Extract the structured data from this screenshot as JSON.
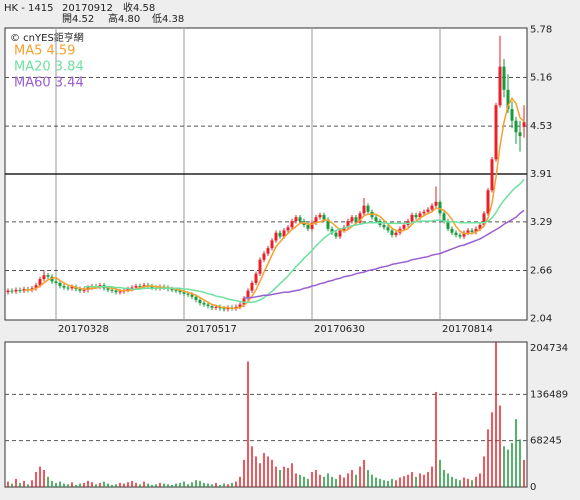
{
  "header": {
    "symbol": "HK - 1415",
    "date": "20170912",
    "close": "收4.58",
    "open": "開4.52",
    "high": "高4.80",
    "low": "低4.38"
  },
  "chart_data": [
    {
      "type": "candlestick",
      "watermark": "© cnYES鉅亨網",
      "categories": [
        null,
        null,
        null,
        null,
        null,
        null,
        null,
        null,
        null,
        null,
        null,
        null,
        "20170328",
        null,
        null,
        null,
        null,
        null,
        null,
        null,
        null,
        null,
        null,
        null,
        null,
        null,
        null,
        null,
        null,
        null,
        null,
        null,
        null,
        null,
        null,
        null,
        null,
        null,
        null,
        null,
        null,
        null,
        null,
        null,
        "20170517",
        null,
        null,
        null,
        null,
        null,
        null,
        null,
        null,
        null,
        null,
        null,
        null,
        null,
        null,
        null,
        null,
        null,
        null,
        null,
        null,
        null,
        null,
        null,
        null,
        null,
        null,
        null,
        null,
        null,
        null,
        null,
        "20170630",
        null,
        null,
        null,
        null,
        null,
        null,
        null,
        null,
        null,
        null,
        null,
        null,
        null,
        null,
        null,
        null,
        null,
        null,
        null,
        null,
        null,
        null,
        null,
        null,
        null,
        null,
        null,
        null,
        null,
        null,
        null,
        "20170814",
        null,
        null,
        null,
        null,
        null,
        null,
        null,
        null,
        null,
        null,
        null,
        null,
        null,
        null,
        null,
        null,
        null,
        null,
        null,
        null,
        null
      ],
      "open": [
        2.38,
        2.4,
        2.39,
        2.41,
        2.4,
        2.42,
        2.41,
        2.43,
        2.47,
        2.55,
        2.6,
        2.58,
        2.52,
        2.5,
        2.46,
        2.44,
        2.43,
        2.45,
        2.42,
        2.4,
        2.41,
        2.44,
        2.46,
        2.45,
        2.47,
        2.43,
        2.41,
        2.4,
        2.38,
        2.39,
        2.41,
        2.42,
        2.44,
        2.46,
        2.45,
        2.47,
        2.46,
        2.44,
        2.43,
        2.45,
        2.44,
        2.42,
        2.41,
        2.4,
        2.38,
        2.36,
        2.35,
        2.32,
        2.28,
        2.24,
        2.22,
        2.2,
        2.18,
        2.19,
        2.17,
        2.16,
        2.18,
        2.17,
        2.19,
        2.22,
        2.3,
        2.4,
        2.5,
        2.62,
        2.8,
        2.88,
        2.95,
        3.05,
        3.15,
        3.1,
        3.18,
        3.22,
        3.3,
        3.35,
        3.3,
        3.25,
        3.2,
        3.28,
        3.35,
        3.38,
        3.32,
        3.2,
        3.15,
        3.1,
        3.18,
        3.22,
        3.3,
        3.35,
        3.28,
        3.4,
        3.5,
        3.42,
        3.35,
        3.3,
        3.25,
        3.22,
        3.18,
        3.12,
        3.15,
        3.2,
        3.25,
        3.3,
        3.38,
        3.35,
        3.4,
        3.42,
        3.45,
        3.5,
        3.55,
        3.4,
        3.3,
        3.2,
        3.15,
        3.12,
        3.1,
        3.15,
        3.18,
        3.16,
        3.2,
        3.25,
        3.4,
        3.7,
        4.1,
        4.8,
        5.3,
        5.0,
        4.75,
        4.6,
        4.45,
        4.52
      ],
      "high": [
        2.43,
        2.43,
        2.44,
        2.44,
        2.45,
        2.45,
        2.46,
        2.5,
        2.58,
        2.66,
        2.63,
        2.61,
        2.55,
        2.53,
        2.49,
        2.47,
        2.48,
        2.48,
        2.45,
        2.44,
        2.47,
        2.49,
        2.49,
        2.5,
        2.5,
        2.46,
        2.44,
        2.43,
        2.42,
        2.44,
        2.45,
        2.47,
        2.49,
        2.49,
        2.5,
        2.5,
        2.49,
        2.47,
        2.48,
        2.48,
        2.47,
        2.45,
        2.44,
        2.43,
        2.41,
        2.39,
        2.38,
        2.35,
        2.31,
        2.27,
        2.25,
        2.23,
        2.22,
        2.22,
        2.2,
        2.21,
        2.21,
        2.22,
        2.25,
        2.33,
        2.43,
        2.53,
        2.65,
        2.83,
        2.91,
        2.98,
        3.08,
        3.18,
        3.18,
        3.21,
        3.25,
        3.33,
        3.38,
        3.38,
        3.33,
        3.28,
        3.31,
        3.38,
        3.41,
        3.41,
        3.35,
        3.23,
        3.18,
        3.21,
        3.25,
        3.33,
        3.38,
        3.38,
        3.43,
        3.6,
        3.53,
        3.45,
        3.38,
        3.33,
        3.28,
        3.25,
        3.21,
        3.18,
        3.23,
        3.28,
        3.33,
        3.41,
        3.41,
        3.43,
        3.45,
        3.48,
        3.53,
        3.75,
        3.58,
        3.43,
        3.33,
        3.23,
        3.18,
        3.15,
        3.18,
        3.21,
        3.21,
        3.23,
        3.28,
        3.43,
        3.73,
        4.13,
        4.83,
        5.7,
        5.4,
        5.2,
        4.85,
        4.65,
        4.6,
        4.8
      ],
      "low": [
        2.35,
        2.36,
        2.36,
        2.37,
        2.37,
        2.38,
        2.38,
        2.4,
        2.44,
        2.52,
        2.55,
        2.49,
        2.47,
        2.43,
        2.41,
        2.4,
        2.4,
        2.39,
        2.37,
        2.37,
        2.38,
        2.41,
        2.42,
        2.42,
        2.4,
        2.38,
        2.37,
        2.35,
        2.35,
        2.36,
        2.38,
        2.39,
        2.41,
        2.42,
        2.42,
        2.43,
        2.41,
        2.4,
        2.4,
        2.41,
        2.39,
        2.38,
        2.37,
        2.35,
        2.33,
        2.32,
        2.29,
        2.25,
        2.21,
        2.19,
        2.17,
        2.15,
        2.15,
        2.14,
        2.13,
        2.13,
        2.14,
        2.14,
        2.16,
        2.19,
        2.27,
        2.37,
        2.47,
        2.59,
        2.77,
        2.85,
        2.92,
        3.02,
        3.07,
        3.07,
        3.15,
        3.19,
        3.27,
        3.27,
        3.22,
        3.17,
        3.17,
        3.25,
        3.32,
        3.29,
        3.17,
        3.12,
        3.07,
        3.07,
        3.15,
        3.19,
        3.27,
        3.25,
        3.25,
        3.37,
        3.39,
        3.32,
        3.27,
        3.22,
        3.19,
        3.15,
        3.09,
        3.09,
        3.12,
        3.17,
        3.22,
        3.27,
        3.32,
        3.32,
        3.37,
        3.39,
        3.42,
        3.47,
        3.37,
        3.27,
        3.17,
        3.12,
        3.09,
        3.07,
        3.07,
        3.12,
        3.13,
        3.13,
        3.17,
        3.22,
        3.37,
        3.67,
        4.07,
        4.77,
        4.9,
        4.7,
        4.5,
        4.3,
        4.2,
        4.38
      ],
      "close": [
        2.4,
        2.39,
        2.41,
        2.4,
        2.42,
        2.41,
        2.43,
        2.47,
        2.55,
        2.6,
        2.58,
        2.52,
        2.5,
        2.46,
        2.44,
        2.43,
        2.45,
        2.42,
        2.4,
        2.41,
        2.44,
        2.46,
        2.45,
        2.47,
        2.43,
        2.41,
        2.4,
        2.38,
        2.39,
        2.41,
        2.42,
        2.44,
        2.46,
        2.45,
        2.47,
        2.46,
        2.44,
        2.43,
        2.45,
        2.44,
        2.42,
        2.41,
        2.4,
        2.38,
        2.36,
        2.35,
        2.32,
        2.28,
        2.24,
        2.22,
        2.2,
        2.18,
        2.19,
        2.17,
        2.16,
        2.18,
        2.17,
        2.19,
        2.22,
        2.3,
        2.4,
        2.5,
        2.62,
        2.8,
        2.88,
        2.95,
        3.05,
        3.15,
        3.1,
        3.18,
        3.22,
        3.3,
        3.35,
        3.3,
        3.25,
        3.2,
        3.28,
        3.35,
        3.38,
        3.32,
        3.2,
        3.15,
        3.1,
        3.18,
        3.22,
        3.3,
        3.35,
        3.28,
        3.4,
        3.5,
        3.42,
        3.35,
        3.3,
        3.25,
        3.22,
        3.18,
        3.12,
        3.15,
        3.2,
        3.25,
        3.3,
        3.38,
        3.35,
        3.4,
        3.42,
        3.45,
        3.5,
        3.55,
        3.4,
        3.3,
        3.2,
        3.15,
        3.12,
        3.1,
        3.15,
        3.18,
        3.16,
        3.2,
        3.25,
        3.4,
        3.7,
        4.1,
        4.8,
        5.3,
        5.0,
        4.75,
        4.6,
        4.45,
        4.4,
        4.58
      ],
      "up_color": "#e8202a",
      "down_color": "#1a9a3a",
      "series": [
        {
          "name": "MA5 4.59",
          "color": "#f5a030",
          "values": [
            null,
            null,
            null,
            null,
            2.4,
            2.41,
            2.41,
            2.43,
            2.46,
            2.5,
            2.54,
            2.56,
            2.57,
            2.53,
            2.5,
            2.47,
            2.46,
            2.44,
            2.43,
            2.42,
            2.42,
            2.43,
            2.43,
            2.45,
            2.45,
            2.44,
            2.43,
            2.42,
            2.4,
            2.4,
            2.4,
            2.41,
            2.42,
            2.44,
            2.45,
            2.46,
            2.46,
            2.45,
            2.45,
            2.44,
            2.44,
            2.43,
            2.42,
            2.41,
            2.39,
            2.38,
            2.36,
            2.34,
            2.31,
            2.28,
            2.25,
            2.22,
            2.21,
            2.19,
            2.18,
            2.18,
            2.17,
            2.17,
            2.18,
            2.21,
            2.26,
            2.33,
            2.41,
            2.52,
            2.64,
            2.75,
            2.86,
            2.97,
            3.03,
            3.09,
            3.14,
            3.19,
            3.23,
            3.27,
            3.28,
            3.26,
            3.26,
            3.28,
            3.29,
            3.31,
            3.31,
            3.28,
            3.23,
            3.19,
            3.17,
            3.19,
            3.23,
            3.27,
            3.31,
            3.37,
            3.39,
            3.39,
            3.39,
            3.36,
            3.31,
            3.26,
            3.21,
            3.18,
            3.17,
            3.18,
            3.2,
            3.26,
            3.3,
            3.34,
            3.37,
            3.4,
            3.42,
            3.47,
            3.46,
            3.44,
            3.39,
            3.32,
            3.23,
            3.17,
            3.14,
            3.14,
            3.14,
            3.16,
            3.19,
            3.24,
            3.34,
            3.53,
            3.87,
            4.27,
            4.58,
            4.79,
            4.89,
            4.82,
            4.64,
            4.59
          ]
        },
        {
          "name": "MA20 3.84",
          "color": "#6fe0a0",
          "values": [
            null,
            null,
            null,
            null,
            null,
            null,
            null,
            null,
            null,
            null,
            null,
            null,
            null,
            null,
            null,
            null,
            null,
            null,
            null,
            2.45,
            2.45,
            2.45,
            2.45,
            2.45,
            2.45,
            2.45,
            2.45,
            2.44,
            2.44,
            2.43,
            2.43,
            2.42,
            2.42,
            2.42,
            2.43,
            2.43,
            2.43,
            2.43,
            2.43,
            2.43,
            2.43,
            2.43,
            2.43,
            2.43,
            2.42,
            2.42,
            2.41,
            2.4,
            2.39,
            2.38,
            2.36,
            2.35,
            2.33,
            2.32,
            2.31,
            2.29,
            2.28,
            2.27,
            2.26,
            2.25,
            2.25,
            2.25,
            2.26,
            2.28,
            2.31,
            2.35,
            2.39,
            2.44,
            2.49,
            2.54,
            2.59,
            2.65,
            2.71,
            2.76,
            2.82,
            2.87,
            2.92,
            2.98,
            3.03,
            3.08,
            3.12,
            3.16,
            3.18,
            3.2,
            3.21,
            3.23,
            3.24,
            3.25,
            3.26,
            3.27,
            3.28,
            3.28,
            3.28,
            3.28,
            3.28,
            3.27,
            3.27,
            3.27,
            3.27,
            3.27,
            3.27,
            3.28,
            3.29,
            3.3,
            3.3,
            3.3,
            3.3,
            3.31,
            3.31,
            3.3,
            3.29,
            3.29,
            3.29,
            3.28,
            3.28,
            3.28,
            3.28,
            3.28,
            3.28,
            3.28,
            3.3,
            3.34,
            3.41,
            3.5,
            3.57,
            3.63,
            3.69,
            3.74,
            3.78,
            3.84
          ]
        },
        {
          "name": "MA60 3.44",
          "color": "#9b5fd0",
          "values": [
            null,
            null,
            null,
            null,
            null,
            null,
            null,
            null,
            null,
            null,
            null,
            null,
            null,
            null,
            null,
            null,
            null,
            null,
            null,
            null,
            null,
            null,
            null,
            null,
            null,
            null,
            null,
            null,
            null,
            null,
            null,
            null,
            null,
            null,
            null,
            null,
            null,
            null,
            null,
            null,
            null,
            null,
            null,
            null,
            null,
            null,
            null,
            null,
            null,
            null,
            null,
            null,
            null,
            null,
            null,
            null,
            null,
            null,
            null,
            2.3,
            2.31,
            2.31,
            2.32,
            2.33,
            2.34,
            2.34,
            2.35,
            2.36,
            2.37,
            2.38,
            2.38,
            2.39,
            2.4,
            2.41,
            2.43,
            2.44,
            2.46,
            2.47,
            2.49,
            2.5,
            2.52,
            2.53,
            2.55,
            2.56,
            2.58,
            2.59,
            2.6,
            2.62,
            2.63,
            2.64,
            2.66,
            2.67,
            2.68,
            2.7,
            2.71,
            2.72,
            2.74,
            2.75,
            2.76,
            2.77,
            2.78,
            2.8,
            2.81,
            2.82,
            2.83,
            2.84,
            2.86,
            2.87,
            2.88,
            2.9,
            2.92,
            2.94,
            2.96,
            2.98,
            2.99,
            3.01,
            3.03,
            3.05,
            3.07,
            3.1,
            3.13,
            3.16,
            3.19,
            3.22,
            3.26,
            3.29,
            3.32,
            3.35,
            3.4,
            3.44
          ]
        }
      ],
      "ylim": [
        2.02,
        5.8
      ],
      "yticks": [
        2.04,
        2.66,
        3.29,
        3.91,
        4.53,
        5.16,
        5.78
      ],
      "grid": true
    },
    {
      "type": "bar",
      "values": [
        8000,
        5000,
        12000,
        6000,
        9000,
        4000,
        10000,
        22000,
        30000,
        25000,
        15000,
        9000,
        6000,
        8000,
        5000,
        4000,
        7000,
        3000,
        5000,
        6000,
        9000,
        7000,
        4000,
        6000,
        8000,
        5000,
        3000,
        4000,
        6000,
        5000,
        7000,
        9000,
        6000,
        4000,
        8000,
        5000,
        3000,
        4000,
        6000,
        5000,
        4000,
        3000,
        5000,
        6000,
        8000,
        4000,
        7000,
        10000,
        9000,
        6000,
        5000,
        4000,
        6000,
        3000,
        5000,
        4000,
        6000,
        8000,
        15000,
        40000,
        185000,
        60000,
        45000,
        35000,
        50000,
        45000,
        40000,
        30000,
        25000,
        30000,
        28000,
        35000,
        20000,
        18000,
        15000,
        12000,
        22000,
        25000,
        18000,
        15000,
        20000,
        15000,
        12000,
        18000,
        14000,
        20000,
        25000,
        18000,
        30000,
        40000,
        25000,
        18000,
        14000,
        12000,
        10000,
        9000,
        12000,
        10000,
        14000,
        16000,
        18000,
        22000,
        15000,
        20000,
        18000,
        22000,
        30000,
        140000,
        40000,
        25000,
        20000,
        15000,
        12000,
        10000,
        14000,
        12000,
        10000,
        15000,
        20000,
        45000,
        85000,
        110000,
        213000,
        120000,
        60000,
        55000,
        65000,
        100000,
        70000,
        40000
      ],
      "ylim": [
        0,
        213573
      ],
      "yticks": [
        0,
        68245,
        136489,
        204734
      ],
      "grid": true
    }
  ]
}
